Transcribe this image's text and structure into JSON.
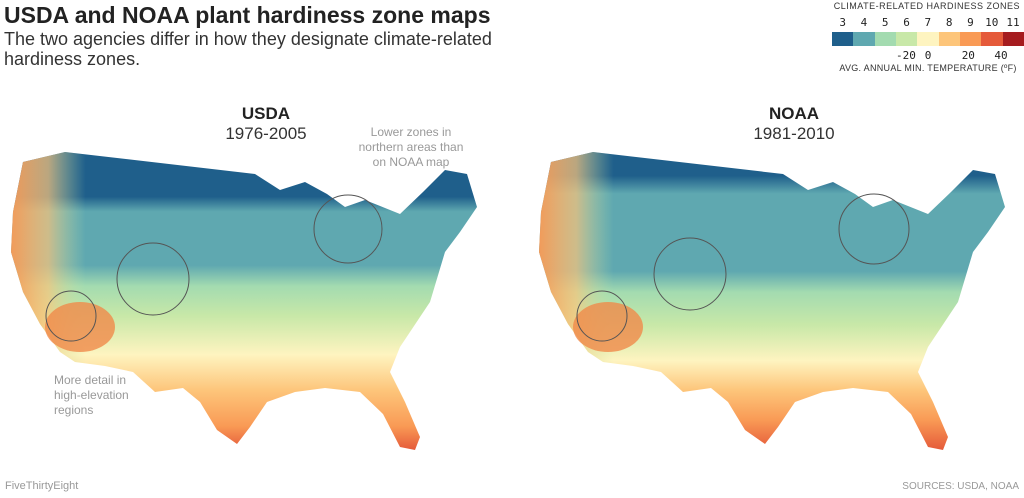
{
  "title": "USDA and NOAA plant hardiness zone maps",
  "subtitle": "The two agencies differ in how they designate climate-related hardiness zones.",
  "legend": {
    "title": "CLIMATE-RELATED HARDINESS ZONES",
    "zones": [
      "3",
      "4",
      "5",
      "6",
      "7",
      "8",
      "9",
      "10",
      "11"
    ],
    "colors": [
      "#1f5f8b",
      "#5fa8b0",
      "#a3dbb0",
      "#c8e8a8",
      "#fef4c0",
      "#fdc57a",
      "#f99a55",
      "#e55a3a",
      "#a51c1f"
    ],
    "ticks": [
      "-20",
      "0",
      "20",
      "40"
    ],
    "axis_label": "AVG. ANNUAL MIN. TEMPERATURE (ºF)"
  },
  "maps": [
    {
      "agency": "USDA",
      "years": "1976-2005"
    },
    {
      "agency": "NOAA",
      "years": "1981-2010"
    }
  ],
  "annotations": {
    "north": "Lower zones in northern areas than on NOAA map",
    "elevation": "More detail in high-elevation regions"
  },
  "footer": {
    "brand": "FiveThirtyEight",
    "sources": "SOURCES: USDA, NOAA"
  }
}
